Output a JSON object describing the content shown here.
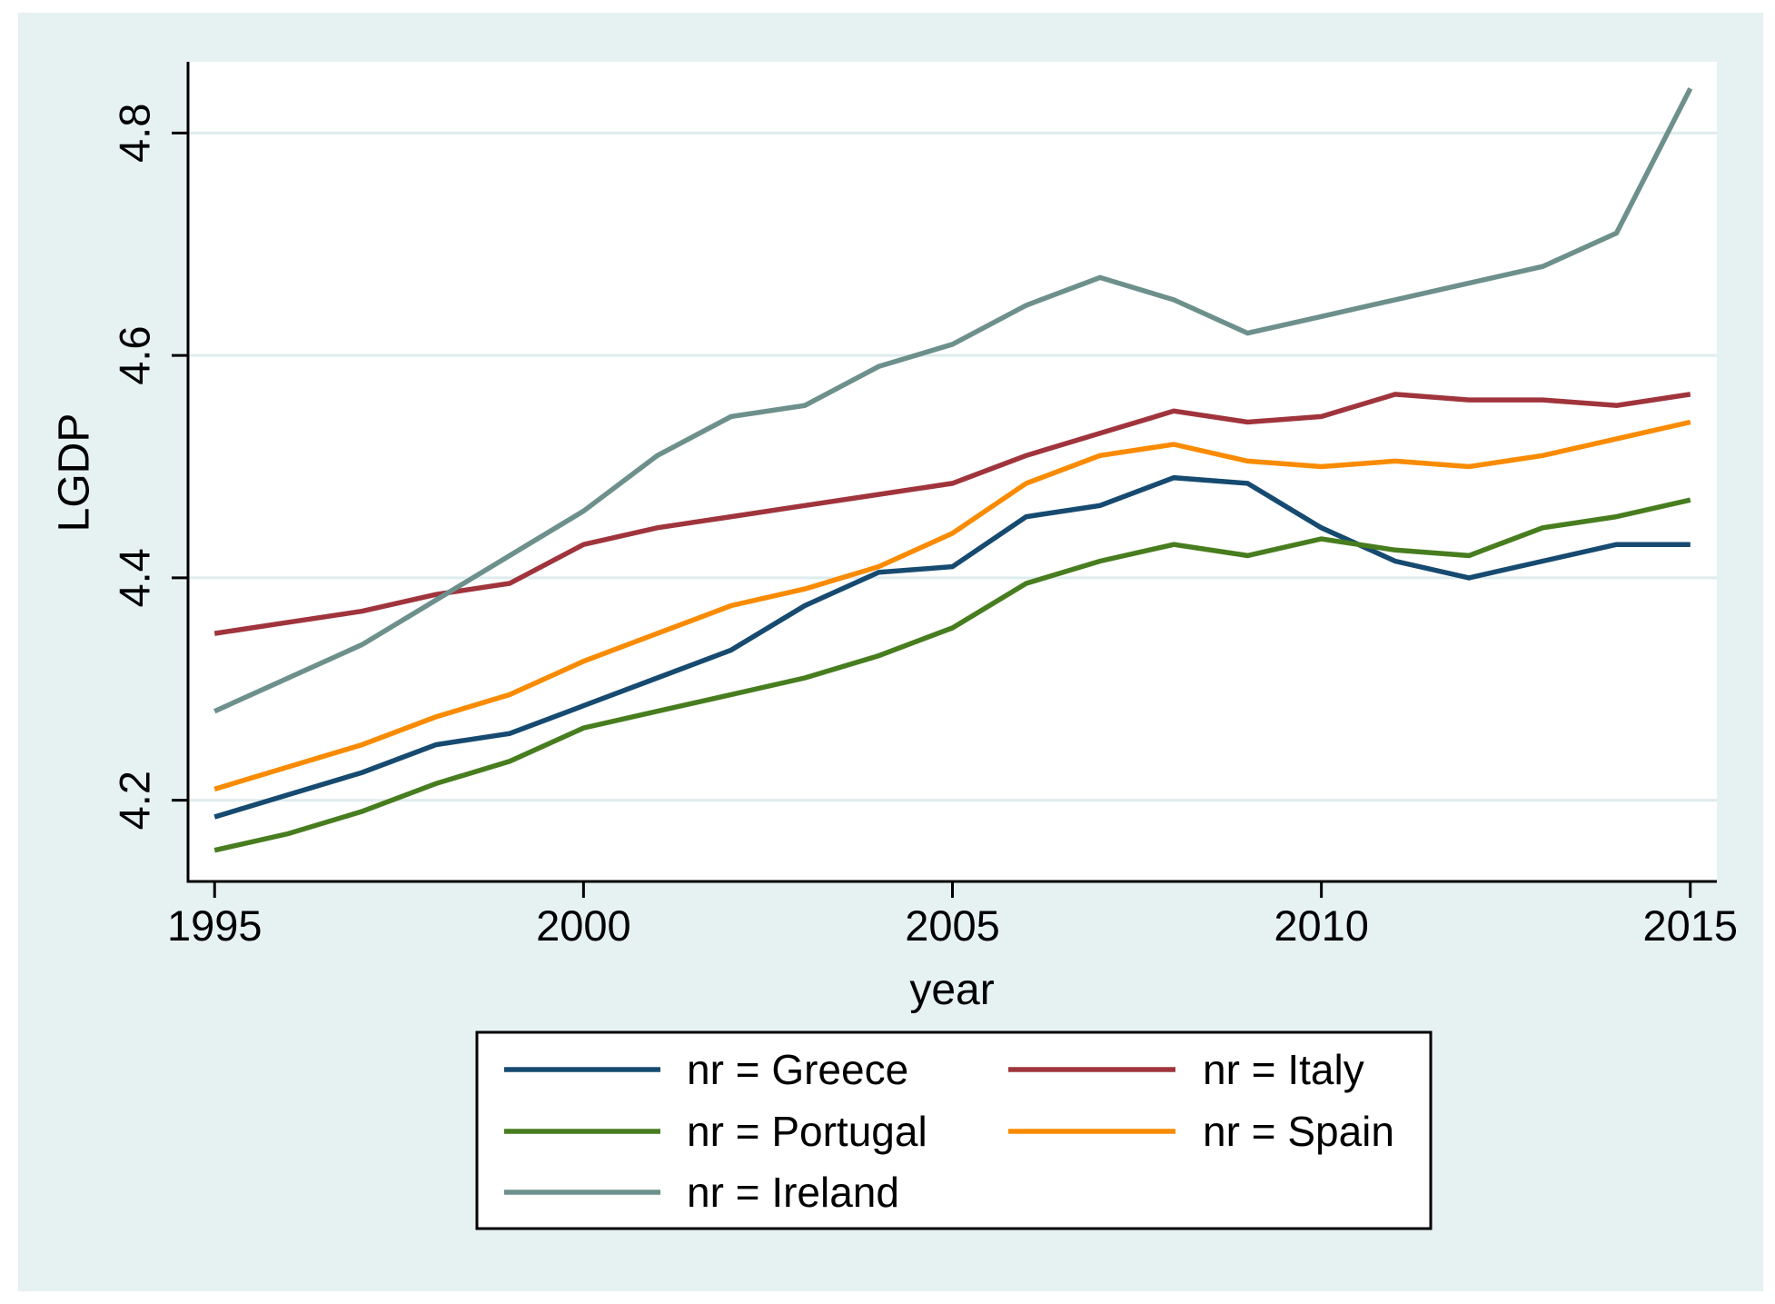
{
  "figure": {
    "y_tick_labels": [
      "4.2",
      "4.4",
      "4.6",
      "4.8"
    ],
    "x_tick_labels": [
      "1995",
      "2000",
      "2005",
      "2010",
      "2015"
    ]
  },
  "chart_data": {
    "type": "line",
    "title": "",
    "xlabel": "year",
    "ylabel": "LGDP",
    "grid": true,
    "legend_position": "bottom-center",
    "background_color": "#e6f1f2",
    "plot_background_color": "#ffffff",
    "gridline_color": "#dfeced",
    "xlim": [
      1994.64,
      2015.36
    ],
    "ylim": [
      4.127,
      4.864
    ],
    "y_ticks": [
      4.2,
      4.4,
      4.6,
      4.8
    ],
    "x_ticks": [
      1995,
      2000,
      2005,
      2010,
      2015
    ],
    "x": [
      1995,
      1996,
      1997,
      1998,
      1999,
      2000,
      2001,
      2002,
      2003,
      2004,
      2005,
      2006,
      2007,
      2008,
      2009,
      2010,
      2011,
      2012,
      2013,
      2014,
      2015
    ],
    "series": [
      {
        "name": "nr = Greece",
        "color": "#164a70",
        "values": [
          4.185,
          4.205,
          4.225,
          4.25,
          4.26,
          4.285,
          4.31,
          4.335,
          4.375,
          4.405,
          4.41,
          4.455,
          4.465,
          4.49,
          4.485,
          4.445,
          4.415,
          4.4,
          4.415,
          4.43,
          4.43
        ]
      },
      {
        "name": "nr = Italy",
        "color": "#a0343c",
        "values": [
          4.35,
          4.36,
          4.37,
          4.385,
          4.395,
          4.43,
          4.445,
          4.455,
          4.465,
          4.475,
          4.485,
          4.51,
          4.53,
          4.55,
          4.54,
          4.545,
          4.565,
          4.56,
          4.56,
          4.555,
          4.565
        ]
      },
      {
        "name": "nr = Portugal",
        "color": "#477d1f",
        "values": [
          4.155,
          4.17,
          4.19,
          4.215,
          4.235,
          4.265,
          4.28,
          4.295,
          4.31,
          4.33,
          4.355,
          4.395,
          4.415,
          4.43,
          4.42,
          4.435,
          4.425,
          4.42,
          4.445,
          4.455,
          4.47
        ]
      },
      {
        "name": "nr = Spain",
        "color": "#f98b00",
        "values": [
          4.21,
          4.23,
          4.25,
          4.275,
          4.295,
          4.325,
          4.35,
          4.375,
          4.39,
          4.41,
          4.44,
          4.485,
          4.51,
          4.52,
          4.505,
          4.5,
          4.505,
          4.5,
          4.51,
          4.525,
          4.54
        ]
      },
      {
        "name": "nr = Ireland",
        "color": "#6d908c",
        "values": [
          4.28,
          4.31,
          4.34,
          4.38,
          4.42,
          4.46,
          4.51,
          4.545,
          4.555,
          4.59,
          4.61,
          4.645,
          4.67,
          4.65,
          4.62,
          4.635,
          4.65,
          4.665,
          4.68,
          4.71,
          4.84
        ]
      }
    ]
  }
}
